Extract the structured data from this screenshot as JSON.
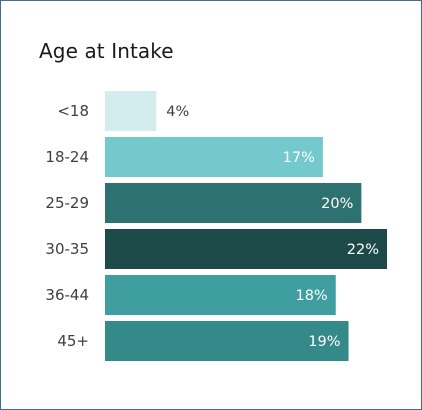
{
  "chart_data": {
    "type": "bar",
    "orientation": "horizontal",
    "title": "Age at Intake",
    "categories": [
      "<18",
      "18-24",
      "25-29",
      "30-35",
      "36-44",
      "45+"
    ],
    "values": [
      4,
      17,
      20,
      22,
      18,
      19
    ],
    "value_labels": [
      "4%",
      "17%",
      "20%",
      "22%",
      "18%",
      "19%"
    ],
    "unit": "%",
    "bar_colors": [
      "#d3ecee",
      "#74c9cc",
      "#2d7270",
      "#1d4a48",
      "#3e9ea0",
      "#348a88"
    ],
    "label_colors": [
      "#404040",
      "#ffffff",
      "#ffffff",
      "#ffffff",
      "#ffffff",
      "#ffffff"
    ],
    "xlim": [
      0,
      22
    ],
    "grid": false,
    "legend": "none"
  }
}
